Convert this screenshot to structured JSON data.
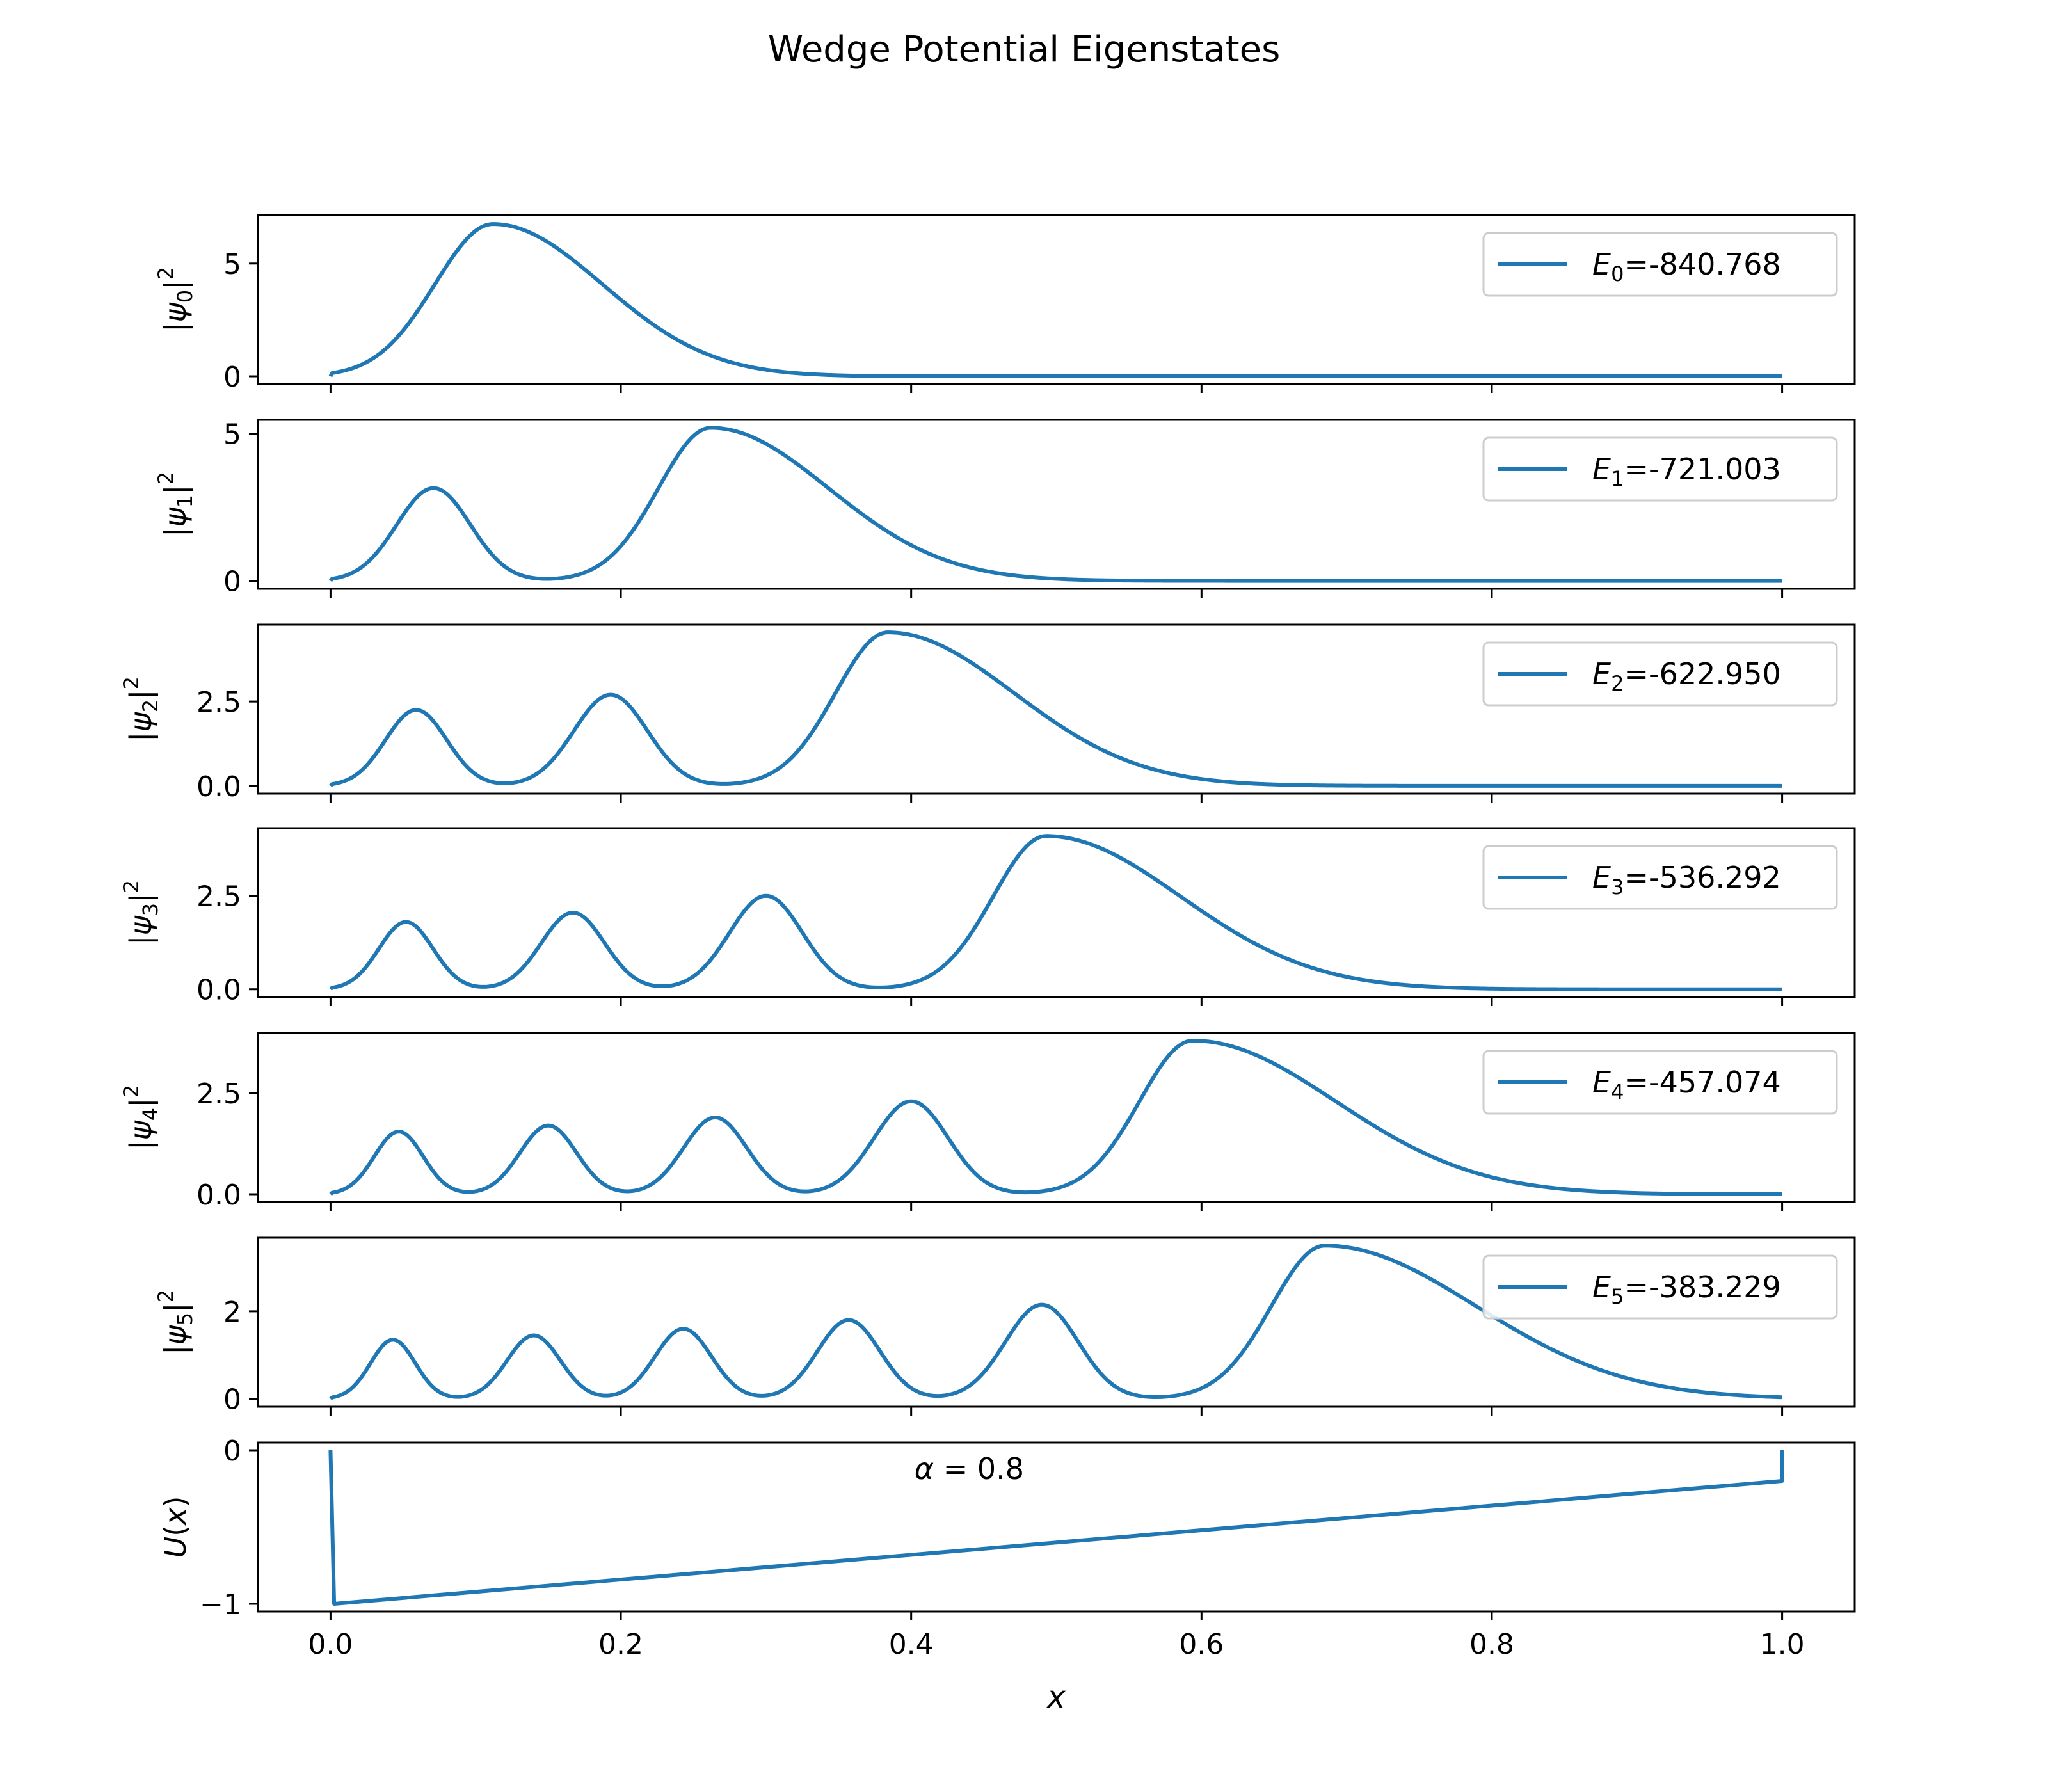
{
  "figure": {
    "title": "Wedge Potential Eigenstates",
    "line_color": "#1f77b4"
  },
  "chart_data": [
    {
      "type": "line",
      "ylabel": {
        "base": "|ψ",
        "sub": "0",
        "tail": "|",
        "sup": "2"
      },
      "legend": {
        "sym": "E",
        "sub": "0",
        "value": "=-840.768",
        "placement": "upper right"
      },
      "series": [
        {
          "name": "E0=-840.768",
          "kind": "eigenstate",
          "peaks": [
            {
              "x": 0.112,
              "h": 6.75
            }
          ],
          "tail_width": 0.065
        }
      ],
      "xlim": [
        -0.05,
        1.05
      ],
      "ylim": [
        -0.34,
        7.15
      ],
      "y_ticks": [
        0,
        5
      ],
      "y_tick_labels": [
        "0",
        "5"
      ],
      "x_ticks": [
        0,
        0.2,
        0.4,
        0.6,
        0.8,
        1.0
      ]
    },
    {
      "type": "line",
      "ylabel": {
        "base": "|ψ",
        "sub": "1",
        "tail": "|",
        "sup": "2"
      },
      "legend": {
        "sym": "E",
        "sub": "1",
        "value": "=-721.003",
        "placement": "upper right"
      },
      "series": [
        {
          "name": "E1=-721.003",
          "kind": "eigenstate",
          "peaks": [
            {
              "x": 0.071,
              "h": 3.15
            },
            {
              "x": 0.262,
              "h": 5.2
            }
          ],
          "tail_width": 0.07
        }
      ],
      "xlim": [
        -0.05,
        1.05
      ],
      "ylim": [
        -0.27,
        5.47
      ],
      "y_ticks": [
        0,
        5
      ],
      "y_tick_labels": [
        "0",
        "5"
      ],
      "x_ticks": [
        0,
        0.2,
        0.4,
        0.6,
        0.8,
        1.0
      ]
    },
    {
      "type": "line",
      "ylabel": {
        "base": "|ψ",
        "sub": "2",
        "tail": "|",
        "sup": "2"
      },
      "legend": {
        "sym": "E",
        "sub": "2",
        "value": "=-622.950",
        "placement": "upper right"
      },
      "series": [
        {
          "name": "E2=-622.950",
          "kind": "eigenstate",
          "peaks": [
            {
              "x": 0.059,
              "h": 2.25
            },
            {
              "x": 0.193,
              "h": 2.7
            },
            {
              "x": 0.384,
              "h": 4.55
            }
          ],
          "tail_width": 0.075
        }
      ],
      "xlim": [
        -0.05,
        1.05
      ],
      "ylim": [
        -0.23,
        4.78
      ],
      "y_ticks": [
        0,
        2.5
      ],
      "y_tick_labels": [
        "0.0",
        "2.5"
      ],
      "x_ticks": [
        0,
        0.2,
        0.4,
        0.6,
        0.8,
        1.0
      ]
    },
    {
      "type": "line",
      "ylabel": {
        "base": "|ψ",
        "sub": "3",
        "tail": "|",
        "sup": "2"
      },
      "legend": {
        "sym": "E",
        "sub": "3",
        "value": "=-536.292",
        "placement": "upper right"
      },
      "series": [
        {
          "name": "E3=-536.292",
          "kind": "eigenstate",
          "peaks": [
            {
              "x": 0.052,
              "h": 1.8
            },
            {
              "x": 0.167,
              "h": 2.05
            },
            {
              "x": 0.3,
              "h": 2.5
            },
            {
              "x": 0.493,
              "h": 4.1
            }
          ],
          "tail_width": 0.08
        }
      ],
      "xlim": [
        -0.05,
        1.05
      ],
      "ylim": [
        -0.21,
        4.31
      ],
      "y_ticks": [
        0,
        2.5
      ],
      "y_tick_labels": [
        "0.0",
        "2.5"
      ],
      "x_ticks": [
        0,
        0.2,
        0.4,
        0.6,
        0.8,
        1.0
      ]
    },
    {
      "type": "line",
      "ylabel": {
        "base": "|ψ",
        "sub": "4",
        "tail": "|",
        "sup": "2"
      },
      "legend": {
        "sym": "E",
        "sub": "4",
        "value": "=-457.074",
        "placement": "upper right"
      },
      "series": [
        {
          "name": "E4=-457.074",
          "kind": "eigenstate",
          "peaks": [
            {
              "x": 0.047,
              "h": 1.55
            },
            {
              "x": 0.15,
              "h": 1.7
            },
            {
              "x": 0.265,
              "h": 1.9
            },
            {
              "x": 0.4,
              "h": 2.3
            },
            {
              "x": 0.594,
              "h": 3.8
            }
          ],
          "tail_width": 0.085
        }
      ],
      "xlim": [
        -0.05,
        1.05
      ],
      "ylim": [
        -0.19,
        3.99
      ],
      "y_ticks": [
        0,
        2.5
      ],
      "y_tick_labels": [
        "0.0",
        "2.5"
      ],
      "x_ticks": [
        0,
        0.2,
        0.4,
        0.6,
        0.8,
        1.0
      ]
    },
    {
      "type": "line",
      "ylabel": {
        "base": "|ψ",
        "sub": "5",
        "tail": "|",
        "sup": "2"
      },
      "legend": {
        "sym": "E",
        "sub": "5",
        "value": "=-383.229",
        "placement": "upper right"
      },
      "series": [
        {
          "name": "E5=-383.229",
          "kind": "eigenstate",
          "peaks": [
            {
              "x": 0.043,
              "h": 1.35
            },
            {
              "x": 0.14,
              "h": 1.45
            },
            {
              "x": 0.243,
              "h": 1.6
            },
            {
              "x": 0.357,
              "h": 1.8
            },
            {
              "x": 0.49,
              "h": 2.15
            },
            {
              "x": 0.685,
              "h": 3.5
            }
          ],
          "tail_width": 0.09
        }
      ],
      "xlim": [
        -0.05,
        1.05
      ],
      "ylim": [
        -0.18,
        3.68
      ],
      "y_ticks": [
        0,
        2
      ],
      "y_tick_labels": [
        "0",
        "2"
      ],
      "x_ticks": [
        0,
        0.2,
        0.4,
        0.6,
        0.8,
        1.0
      ]
    },
    {
      "type": "line",
      "ylabel": "U(x)",
      "xlabel": "x",
      "annotation": {
        "text": "α = 0.8",
        "x": 0.44,
        "y": -0.13
      },
      "series": [
        {
          "name": "",
          "kind": "potential",
          "x": [
            0.0,
            0.0025,
            1.0,
            1.0
          ],
          "y": [
            0.0,
            -1.0,
            -0.2,
            0.0
          ]
        }
      ],
      "xlim": [
        -0.05,
        1.05
      ],
      "ylim": [
        -1.05,
        0.05
      ],
      "y_ticks": [
        0,
        -1
      ],
      "y_tick_labels": [
        "0",
        "−1"
      ],
      "x_ticks": [
        0,
        0.2,
        0.4,
        0.6,
        0.8,
        1.0
      ],
      "x_tick_labels": [
        "0.0",
        "0.2",
        "0.4",
        "0.6",
        "0.8",
        "1.0"
      ]
    }
  ]
}
